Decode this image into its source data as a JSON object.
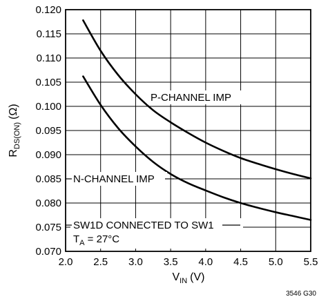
{
  "chart_data": {
    "type": "line",
    "title": "",
    "xlabel": {
      "main": "V",
      "sub": "IN",
      "unit": "(V)"
    },
    "ylabel": {
      "main": "R",
      "sub": "DS(ON)",
      "unit": "(Ω)"
    },
    "xlim": [
      2.0,
      5.5
    ],
    "ylim": [
      0.07,
      0.12
    ],
    "x_ticks": [
      "2.0",
      "2.5",
      "3.0",
      "3.5",
      "4.0",
      "4.5",
      "5.0",
      "5.5"
    ],
    "y_ticks": [
      "0.070",
      "0.075",
      "0.080",
      "0.085",
      "0.090",
      "0.095",
      "0.100",
      "0.105",
      "0.110",
      "0.115",
      "0.120"
    ],
    "grid": true,
    "series": [
      {
        "name": "P-CHANNEL IMP",
        "x": [
          2.25,
          2.5,
          2.75,
          3.0,
          3.25,
          3.5,
          3.75,
          4.0,
          4.25,
          4.5,
          4.75,
          5.0,
          5.25,
          5.5
        ],
        "y": [
          0.1178,
          0.1115,
          0.1065,
          0.1025,
          0.0992,
          0.0967,
          0.0945,
          0.0925,
          0.0908,
          0.0893,
          0.0881,
          0.087,
          0.086,
          0.0851
        ]
      },
      {
        "name": "N-CHANNEL IMP",
        "x": [
          2.25,
          2.5,
          2.75,
          3.0,
          3.25,
          3.5,
          3.75,
          4.0,
          4.25,
          4.5,
          4.75,
          5.0,
          5.25,
          5.5
        ],
        "y": [
          0.1062,
          0.1003,
          0.0955,
          0.0917,
          0.0885,
          0.086,
          0.0841,
          0.0826,
          0.0812,
          0.08,
          0.079,
          0.0781,
          0.0773,
          0.0765
        ]
      }
    ],
    "annotations": {
      "p_label": "P-CHANNEL IMP",
      "n_label": "N-CHANNEL IMP",
      "note_line1": "SW1D CONNECTED TO SW1",
      "note_line2_main": "T",
      "note_line2_sub": "A",
      "note_line2_rest": " = 27°C"
    },
    "figure_id": "3546 G30"
  }
}
